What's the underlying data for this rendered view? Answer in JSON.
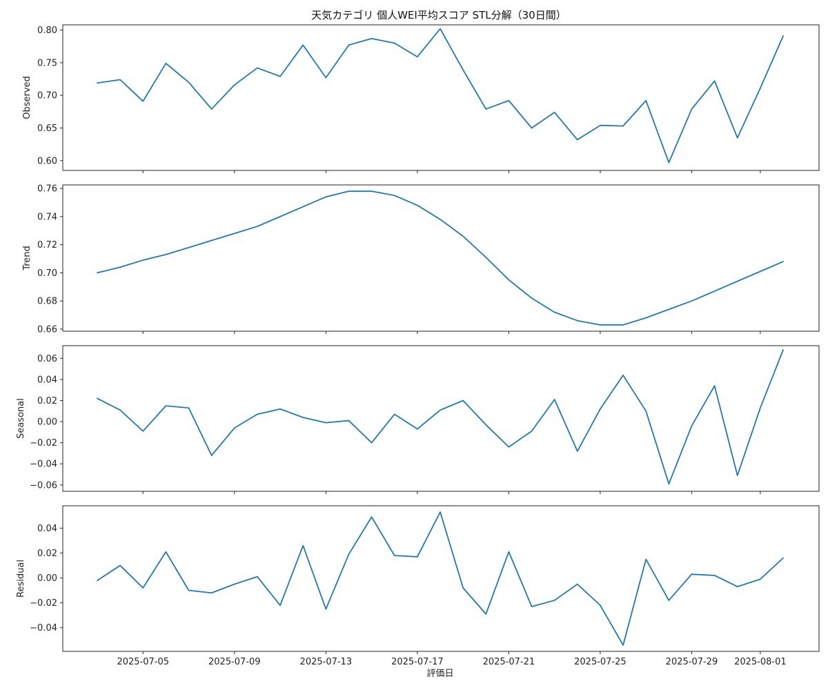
{
  "chart_data": {
    "type": "line",
    "title": "天気カテゴリ 個人WEI平均スコア STL分解（30日間）",
    "xlabel": "評価日",
    "x_tick_labels": [
      "2025-07-05",
      "2025-07-09",
      "2025-07-13",
      "2025-07-17",
      "2025-07-21",
      "2025-07-25",
      "2025-07-29",
      "2025-08-01"
    ],
    "color": "#1f77b4",
    "dates": [
      "2025-07-03",
      "2025-07-04",
      "2025-07-05",
      "2025-07-06",
      "2025-07-07",
      "2025-07-08",
      "2025-07-09",
      "2025-07-10",
      "2025-07-11",
      "2025-07-12",
      "2025-07-13",
      "2025-07-14",
      "2025-07-15",
      "2025-07-16",
      "2025-07-17",
      "2025-07-18",
      "2025-07-19",
      "2025-07-20",
      "2025-07-21",
      "2025-07-22",
      "2025-07-23",
      "2025-07-24",
      "2025-07-25",
      "2025-07-26",
      "2025-07-27",
      "2025-07-28",
      "2025-07-29",
      "2025-07-30",
      "2025-07-31",
      "2025-08-01",
      "2025-08-02"
    ],
    "panels": [
      {
        "ylabel": "Observed",
        "ylim": [
          0.585,
          0.808
        ],
        "yticks": [
          0.6,
          0.65,
          0.7,
          0.75,
          0.8
        ],
        "ytick_labels": [
          "0.60",
          "0.65",
          "0.70",
          "0.75",
          "0.80"
        ],
        "values": [
          0.719,
          0.724,
          0.691,
          0.749,
          0.72,
          0.679,
          0.716,
          0.742,
          0.729,
          0.777,
          0.727,
          0.777,
          0.787,
          0.78,
          0.759,
          0.802,
          0.739,
          0.679,
          0.692,
          0.65,
          0.674,
          0.632,
          0.654,
          0.653,
          0.692,
          0.597,
          0.679,
          0.722,
          0.635,
          0.711,
          0.791
        ]
      },
      {
        "ylabel": "Trend",
        "ylim": [
          0.6585,
          0.7625
        ],
        "yticks": [
          0.66,
          0.68,
          0.7,
          0.72,
          0.74,
          0.76
        ],
        "ytick_labels": [
          "0.66",
          "0.68",
          "0.70",
          "0.72",
          "0.74",
          "0.76"
        ],
        "values": [
          0.7,
          0.704,
          0.709,
          0.713,
          0.718,
          0.723,
          0.728,
          0.733,
          0.74,
          0.747,
          0.754,
          0.758,
          0.758,
          0.755,
          0.748,
          0.738,
          0.726,
          0.711,
          0.695,
          0.682,
          0.672,
          0.666,
          0.663,
          0.663,
          0.668,
          0.674,
          0.68,
          0.687,
          0.694,
          0.701,
          0.708
        ]
      },
      {
        "ylabel": "Seasonal",
        "ylim": [
          -0.066,
          0.072
        ],
        "yticks": [
          -0.06,
          -0.04,
          -0.02,
          0.0,
          0.02,
          0.04,
          0.06
        ],
        "ytick_labels": [
          "−0.06",
          "−0.04",
          "−0.02",
          "0.00",
          "0.02",
          "0.04",
          "0.06"
        ],
        "values": [
          0.022,
          0.011,
          -0.009,
          0.015,
          0.013,
          -0.032,
          -0.006,
          0.007,
          0.012,
          0.004,
          -0.001,
          0.001,
          -0.02,
          0.007,
          -0.007,
          0.011,
          0.02,
          -0.003,
          -0.024,
          -0.009,
          0.021,
          -0.028,
          0.012,
          0.044,
          0.01,
          -0.059,
          -0.004,
          0.034,
          -0.051,
          0.013,
          0.068
        ]
      },
      {
        "ylabel": "Residual",
        "ylim": [
          -0.059,
          0.058
        ],
        "yticks": [
          -0.04,
          -0.02,
          0.0,
          0.02,
          0.04
        ],
        "ytick_labels": [
          "−0.04",
          "−0.02",
          "0.00",
          "0.02",
          "0.04"
        ],
        "values": [
          -0.002,
          0.01,
          -0.008,
          0.021,
          -0.01,
          -0.012,
          -0.005,
          0.001,
          -0.022,
          0.026,
          -0.025,
          0.019,
          0.049,
          0.018,
          0.017,
          0.053,
          -0.008,
          -0.029,
          0.021,
          -0.023,
          -0.018,
          -0.005,
          -0.022,
          -0.054,
          0.015,
          -0.018,
          0.003,
          0.002,
          -0.007,
          -0.001,
          0.016
        ]
      }
    ]
  }
}
